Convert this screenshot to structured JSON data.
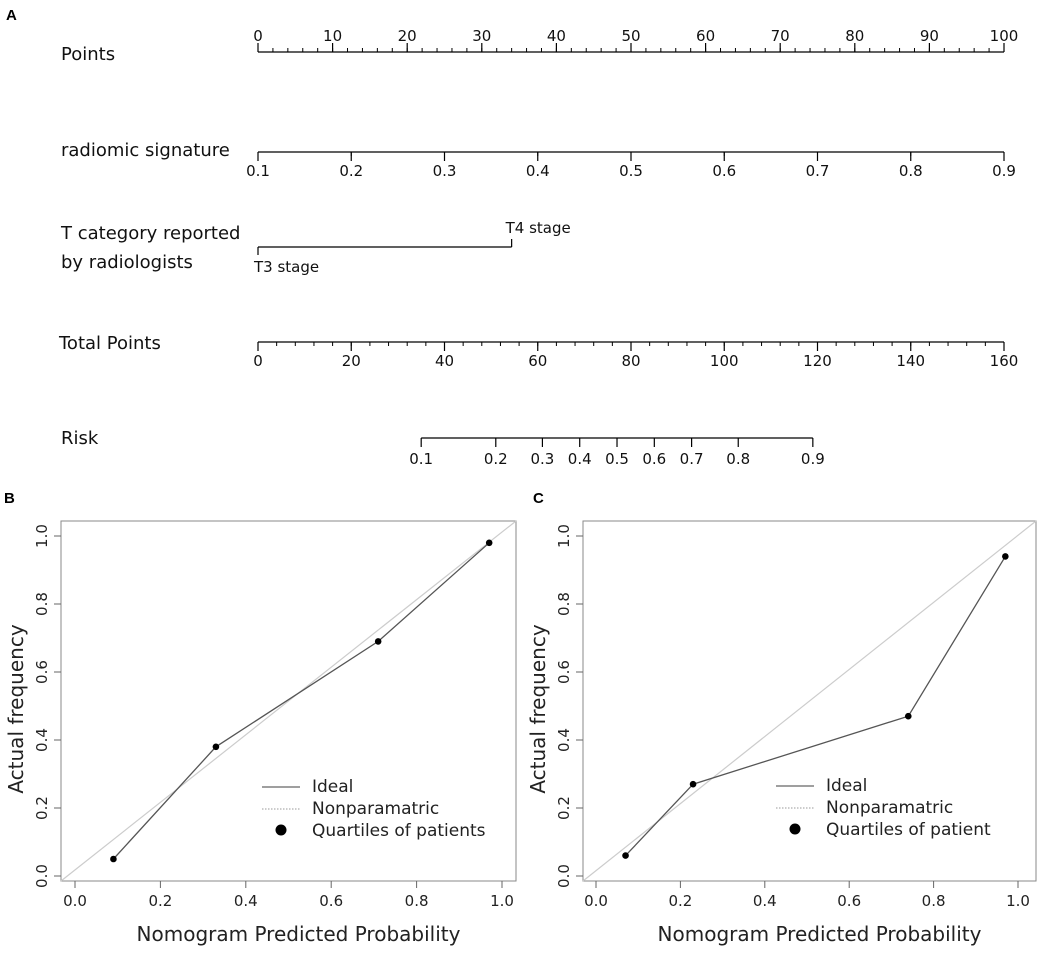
{
  "panels": {
    "a": "A",
    "b": "B",
    "c": "C"
  },
  "nomogram": {
    "rows": [
      {
        "label_lines": [
          "Points"
        ],
        "type": "continuous",
        "min": 0,
        "max": 100,
        "labeled_ticks": [
          0,
          10,
          20,
          30,
          40,
          50,
          60,
          70,
          80,
          90,
          100
        ],
        "minor_step": 2,
        "labels_above": true
      },
      {
        "label_lines": [
          "radiomic signature"
        ],
        "type": "continuous",
        "min": 0.1,
        "max": 0.9,
        "labeled_ticks": [
          0.1,
          0.2,
          0.3,
          0.4,
          0.5,
          0.6,
          0.7,
          0.8,
          0.9
        ],
        "minor_step": 0.1,
        "labels_above": false
      },
      {
        "label_lines": [
          "T category reported",
          " by radiologists"
        ],
        "type": "categorical",
        "categories": [
          {
            "name": "T3 stage",
            "points": 0
          },
          {
            "name": "T4 stage",
            "points": 34
          }
        ]
      },
      {
        "label_lines": [
          "Total Points"
        ],
        "type": "continuous",
        "min": 0,
        "max": 160,
        "labeled_ticks": [
          0,
          20,
          40,
          60,
          80,
          100,
          120,
          140,
          160
        ],
        "minor_step": 4,
        "labels_above": false
      },
      {
        "label_lines": [
          "Risk"
        ],
        "type": "risk",
        "ticks": [
          {
            "label": "0.1",
            "total": 35
          },
          {
            "label": "0.2",
            "total": 51
          },
          {
            "label": "0.3",
            "total": 61
          },
          {
            "label": "0.4",
            "total": 69
          },
          {
            "label": "0.5",
            "total": 77
          },
          {
            "label": "0.6",
            "total": 85
          },
          {
            "label": "0.7",
            "total": 93
          },
          {
            "label": "0.8",
            "total": 103
          },
          {
            "label": "0.9",
            "total": 119
          }
        ]
      }
    ]
  },
  "chart_data": [
    {
      "type": "line",
      "panel": "B",
      "xlabel": "Nomogram Predicted Probability",
      "ylabel": "Actual frequency",
      "xlim": [
        0,
        1
      ],
      "ylim": [
        0,
        1
      ],
      "xticks": [
        "0.0",
        "0.2",
        "0.4",
        "0.6",
        "0.8",
        "1.0"
      ],
      "yticks": [
        "0.0",
        "0.2",
        "0.4",
        "0.6",
        "0.8",
        "1.0"
      ],
      "series": [
        {
          "name": "Ideal",
          "x": [
            0,
            1
          ],
          "y": [
            0,
            1
          ],
          "color": "#cccccc"
        },
        {
          "name": "Quartiles of patients",
          "x": [
            0.09,
            0.33,
            0.71,
            0.97
          ],
          "y": [
            0.05,
            0.38,
            0.69,
            0.98
          ],
          "color": "#555555"
        }
      ],
      "legend": [
        "Ideal",
        "Nonparamatric",
        "Quartiles of patients"
      ],
      "legend_position": "bottom-right"
    },
    {
      "type": "line",
      "panel": "C",
      "xlabel": "Nomogram Predicted Probability",
      "ylabel": "Actual frequency",
      "xlim": [
        0,
        1
      ],
      "ylim": [
        0,
        1
      ],
      "xticks": [
        "0.0",
        "0.2",
        "0.4",
        "0.6",
        "0.8",
        "1.0"
      ],
      "yticks": [
        "0.0",
        "0.2",
        "0.4",
        "0.6",
        "0.8",
        "1.0"
      ],
      "series": [
        {
          "name": "Ideal",
          "x": [
            0,
            1
          ],
          "y": [
            0,
            1
          ],
          "color": "#cccccc"
        },
        {
          "name": "Quartiles of patient",
          "x": [
            0.07,
            0.23,
            0.74,
            0.97
          ],
          "y": [
            0.06,
            0.27,
            0.47,
            0.94
          ],
          "color": "#555555"
        }
      ],
      "legend": [
        "Ideal",
        "Nonparamatric",
        "Quartiles of patient"
      ],
      "legend_position": "bottom-right"
    }
  ]
}
